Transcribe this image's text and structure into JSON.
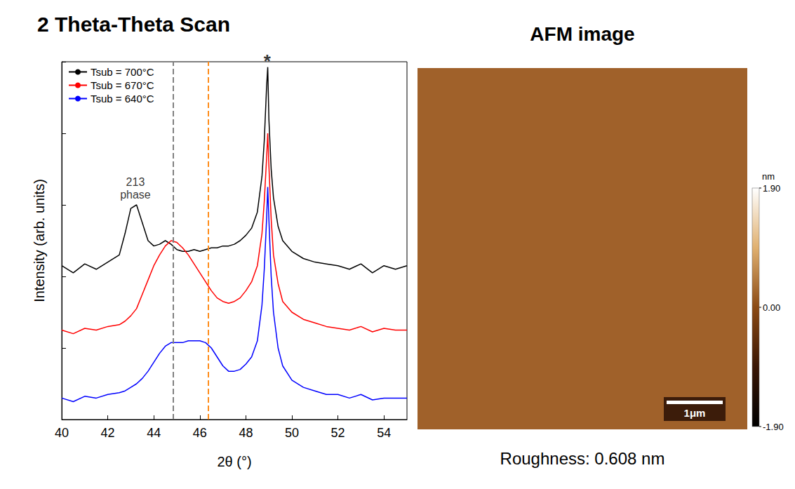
{
  "chart_data": {
    "type": "line",
    "title": "2 Theta-Theta Scan",
    "x_label": "2θ (°)",
    "y_label": "Intensity (arb. units)",
    "x": [
      40,
      40.5,
      41,
      41.5,
      42,
      42.5,
      42.75,
      43,
      43.25,
      43.5,
      43.75,
      44,
      44.25,
      44.5,
      44.75,
      45,
      45.25,
      45.5,
      45.75,
      46,
      46.25,
      46.5,
      46.75,
      47,
      47.25,
      47.5,
      47.75,
      48,
      48.25,
      48.5,
      48.7,
      48.8,
      48.9,
      48.95,
      49.0,
      49.1,
      49.2,
      49.4,
      49.6,
      50,
      50.5,
      51,
      51.5,
      52,
      52.5,
      53,
      53.5,
      54,
      54.5,
      55
    ],
    "series": [
      {
        "name": "Tsub = 700°C",
        "color": "#000000",
        "values": [
          4.3,
          4.1,
          4.35,
          4.2,
          4.4,
          4.6,
          5.2,
          5.9,
          6.0,
          5.5,
          5.0,
          4.85,
          4.9,
          5.0,
          4.9,
          4.75,
          4.7,
          4.7,
          4.75,
          4.7,
          4.75,
          4.8,
          4.8,
          4.85,
          4.85,
          4.9,
          5.0,
          5.15,
          5.35,
          5.8,
          6.8,
          7.8,
          9.3,
          9.85,
          8.4,
          7.0,
          6.2,
          5.4,
          5.0,
          4.7,
          4.5,
          4.4,
          4.35,
          4.3,
          4.2,
          4.35,
          4.1,
          4.3,
          4.2,
          4.3
        ]
      },
      {
        "name": "Tsub = 670°C",
        "color": "#ff0000",
        "values": [
          2.5,
          2.4,
          2.55,
          2.5,
          2.6,
          2.65,
          2.75,
          2.9,
          3.1,
          3.5,
          3.9,
          4.3,
          4.6,
          4.85,
          5.0,
          4.95,
          4.8,
          4.6,
          4.35,
          4.1,
          3.85,
          3.6,
          3.4,
          3.3,
          3.25,
          3.3,
          3.4,
          3.6,
          3.85,
          4.3,
          5.2,
          6.1,
          7.3,
          8.0,
          7.1,
          5.6,
          4.6,
          3.8,
          3.3,
          3.0,
          2.8,
          2.7,
          2.6,
          2.55,
          2.5,
          2.6,
          2.45,
          2.55,
          2.5,
          2.5
        ]
      },
      {
        "name": "Tsub = 640°C",
        "color": "#0000ff",
        "values": [
          0.6,
          0.5,
          0.65,
          0.6,
          0.7,
          0.75,
          0.8,
          0.9,
          1.0,
          1.15,
          1.35,
          1.6,
          1.85,
          2.05,
          2.15,
          2.15,
          2.15,
          2.2,
          2.2,
          2.2,
          2.15,
          2.0,
          1.75,
          1.5,
          1.35,
          1.35,
          1.4,
          1.55,
          1.75,
          2.2,
          3.2,
          4.2,
          5.6,
          6.5,
          5.6,
          4.0,
          3.0,
          2.0,
          1.5,
          1.1,
          0.9,
          0.8,
          0.7,
          0.7,
          0.6,
          0.7,
          0.55,
          0.6,
          0.6,
          0.6
        ]
      }
    ],
    "xlim": [
      40,
      55
    ],
    "xticks": [
      40,
      42,
      44,
      46,
      48,
      50,
      52,
      54
    ],
    "ylim": [
      0,
      10
    ],
    "yticks": [
      0,
      2,
      4,
      6,
      8,
      10
    ],
    "tick_labels": "x",
    "grid": false,
    "legend": "upper left",
    "vlines": [
      {
        "x": 44.85,
        "color": "#808080",
        "line_style": "dashed"
      },
      {
        "x": 46.35,
        "color": "#ff8c1a",
        "line_style": "dashed"
      }
    ],
    "annotations": [
      {
        "text": "213 phase",
        "x": 43.2,
        "y": 6.0
      },
      {
        "text": "*",
        "x": 48.93,
        "y": 9.85
      }
    ]
  },
  "afm": {
    "title": "AFM image",
    "colorbar": {
      "unit": "nm",
      "range": [
        -1.9,
        1.9
      ],
      "ticks": [
        {
          "value": 1.9,
          "label": "1.90"
        },
        {
          "value": 0,
          "label": "0.00"
        },
        {
          "value": -1.9,
          "label": "-1.90"
        }
      ]
    },
    "scale_bar": "1μm",
    "caption": "Roughness: 0.608 nm"
  }
}
